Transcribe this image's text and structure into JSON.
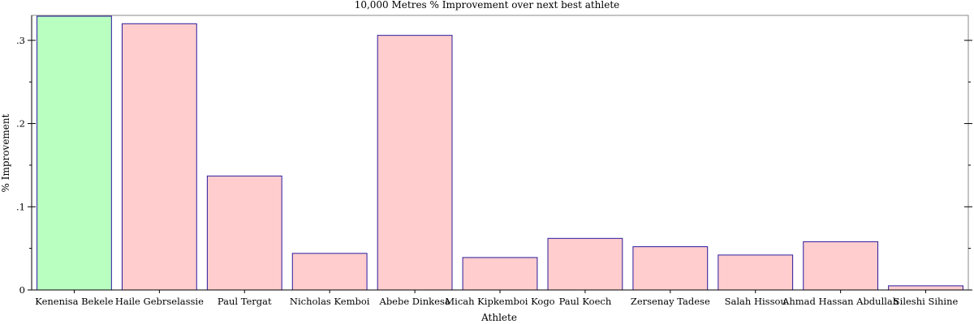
{
  "chart_data": {
    "type": "bar",
    "title": "10,000 Metres % Improvement over next best athlete",
    "xlabel": "Athlete",
    "ylabel": "% Improvement",
    "categories": [
      "Kenenisa Bekele",
      "Haile Gebrselassie",
      "Paul Tergat",
      "Nicholas Kemboi",
      "Abebe Dinkesa",
      "Micah Kipkemboi Kogo",
      "Paul Koech",
      "Zersenay Tadese",
      "Salah Hissou",
      "Ahmad Hassan Abdullah",
      "Sileshi Sihine"
    ],
    "values": [
      0.329,
      0.32,
      0.137,
      0.044,
      0.306,
      0.039,
      0.062,
      0.052,
      0.042,
      0.058,
      0.005
    ],
    "highlight_index": 0,
    "ylim": [
      0,
      0.33
    ],
    "y_ticks": [
      0,
      0.1,
      0.2,
      0.3
    ],
    "y_tick_labels": [
      "0",
      ".1",
      ".2",
      ".3"
    ],
    "y_minor_ticks": [
      0.05,
      0.15,
      0.25
    ],
    "colors": {
      "highlight_fill": "#b9ffc0",
      "bar_fill": "#ffcdcd",
      "bar_stroke": "#2a1a9e",
      "axis": "#000000"
    },
    "grid": false,
    "legend": "none"
  }
}
